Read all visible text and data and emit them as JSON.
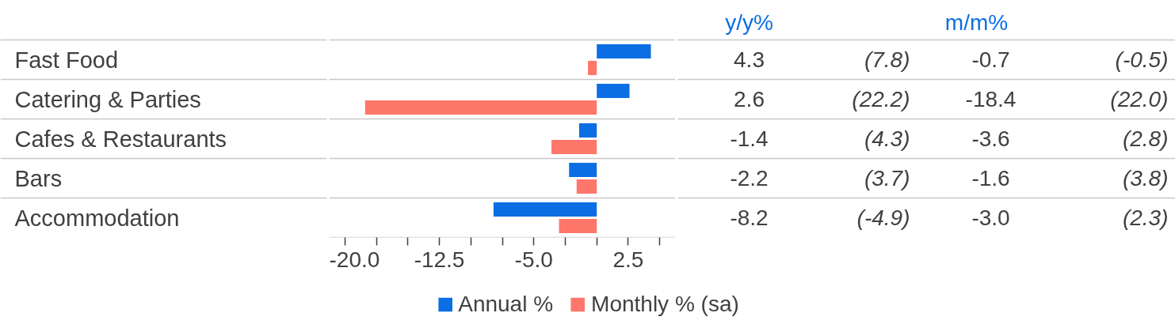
{
  "chart_data": {
    "type": "bar",
    "orientation": "horizontal",
    "categories": [
      "Fast Food",
      "Catering & Parties",
      "Cafes & Restaurants",
      "Bars",
      "Accommodation"
    ],
    "series": [
      {
        "name": "Annual %",
        "color": "#0b6fe3",
        "values": [
          4.3,
          2.6,
          -1.4,
          -2.2,
          -8.2
        ],
        "value_labels": [
          "4.3",
          "2.6",
          "-1.4",
          "-2.2",
          "-8.2"
        ]
      },
      {
        "name": "Monthly % (sa)",
        "color": "#ff766a",
        "values": [
          -0.7,
          -18.4,
          -3.6,
          -1.6,
          -3.0
        ],
        "value_labels": [
          "-0.7",
          "-18.4",
          "-3.6",
          "-1.6",
          "-3.0"
        ]
      }
    ],
    "xlim": [
      -21.25,
      6.25
    ],
    "xticks": [
      {
        "value": -20,
        "label": "-20.0"
      },
      {
        "value": -17.5,
        "label": null
      },
      {
        "value": -15.0,
        "label": null
      },
      -12.5,
      {
        "value": -10.0,
        "label": null
      },
      {
        "value": -7.5,
        "label": null
      },
      {
        "value": -5,
        "label": "-5.0"
      },
      {
        "value": -2.5,
        "label": null
      },
      {
        "value": 0,
        "label": null
      },
      2.5,
      {
        "value": 5.0,
        "label": null
      }
    ],
    "annotations": [
      "y/y%",
      "m/m%",
      "(7.8)",
      "(-0.5)",
      "(22.2)",
      "(22.0)",
      "(4.3)",
      "(2.8)",
      "(3.7)",
      "(3.8)",
      "(-4.9)",
      "(2.3)"
    ],
    "legend": "bottom"
  }
}
